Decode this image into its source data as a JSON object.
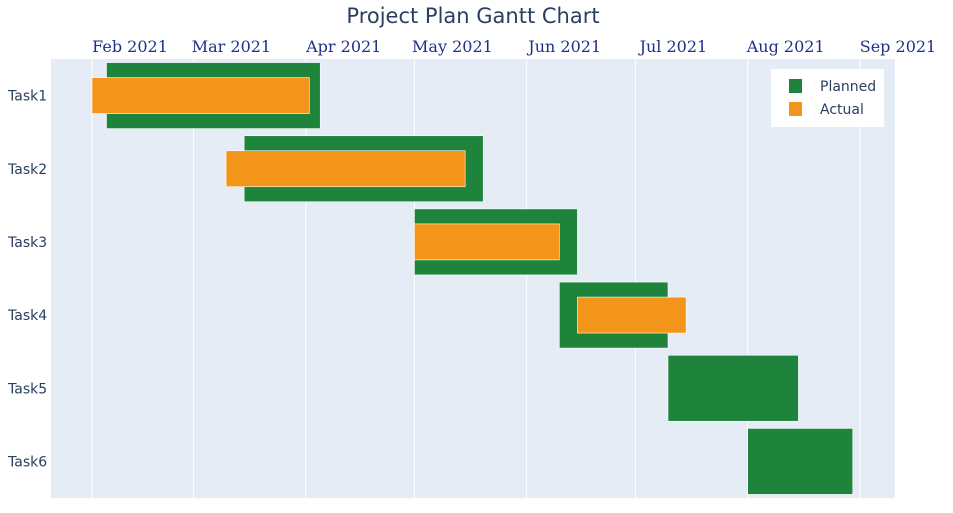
{
  "chart_data": {
    "type": "gantt",
    "title": "Project Plan Gantt Chart",
    "x_axis": {
      "type": "date",
      "position": "top",
      "range": [
        "2021-01-20",
        "2021-09-10"
      ],
      "tick_values": [
        "2021-02-01",
        "2021-03-01",
        "2021-04-01",
        "2021-05-01",
        "2021-06-01",
        "2021-07-01",
        "2021-08-01",
        "2021-09-01"
      ],
      "tick_labels": [
        "Feb 2021",
        "Mar 2021",
        "Apr 2021",
        "May 2021",
        "Jun 2021",
        "Jul 2021",
        "Aug 2021",
        "Sep 2021"
      ]
    },
    "categories": [
      "Task1",
      "Task2",
      "Task3",
      "Task4",
      "Task5",
      "Task6"
    ],
    "series": [
      {
        "name": "Planned",
        "color": "#1e843c",
        "tasks": [
          {
            "task": "Task1",
            "start": "2021-02-05",
            "end": "2021-04-05"
          },
          {
            "task": "Task2",
            "start": "2021-03-15",
            "end": "2021-05-20"
          },
          {
            "task": "Task3",
            "start": "2021-05-01",
            "end": "2021-06-15"
          },
          {
            "task": "Task4",
            "start": "2021-06-10",
            "end": "2021-07-10"
          },
          {
            "task": "Task5",
            "start": "2021-07-10",
            "end": "2021-08-15"
          },
          {
            "task": "Task6",
            "start": "2021-08-01",
            "end": "2021-08-30"
          }
        ]
      },
      {
        "name": "Actual",
        "color": "#f2951a",
        "tasks": [
          {
            "task": "Task1",
            "start": "2021-02-01",
            "end": "2021-04-02"
          },
          {
            "task": "Task2",
            "start": "2021-03-10",
            "end": "2021-05-15"
          },
          {
            "task": "Task3",
            "start": "2021-05-01",
            "end": "2021-06-10"
          },
          {
            "task": "Task4",
            "start": "2021-06-15",
            "end": "2021-07-15"
          }
        ]
      }
    ],
    "legend": {
      "position": "top-right",
      "entries": [
        "Planned",
        "Actual"
      ]
    },
    "grid": true,
    "colors": {
      "plot_bg": "#e5ecf6",
      "grid": "#ffffff",
      "title": "#2a3f5f",
      "tick": "#1f2f8c"
    }
  }
}
